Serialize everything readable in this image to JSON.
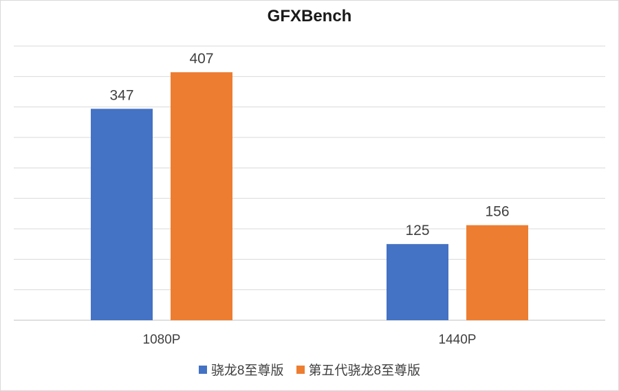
{
  "chart_data": {
    "type": "bar",
    "title": "GFXBench",
    "categories": [
      "1080P",
      "1440P"
    ],
    "series": [
      {
        "name": "骁龙8至尊版",
        "values": [
          347,
          125
        ],
        "color": "#4472c4"
      },
      {
        "name": "第五代骁龙8至尊版",
        "values": [
          407,
          156
        ],
        "color": "#ed7d31"
      }
    ],
    "ylim": [
      0,
      450
    ],
    "ytick_step": 50,
    "grid": true,
    "legend": "bottom",
    "xlabel": "",
    "ylabel": ""
  }
}
